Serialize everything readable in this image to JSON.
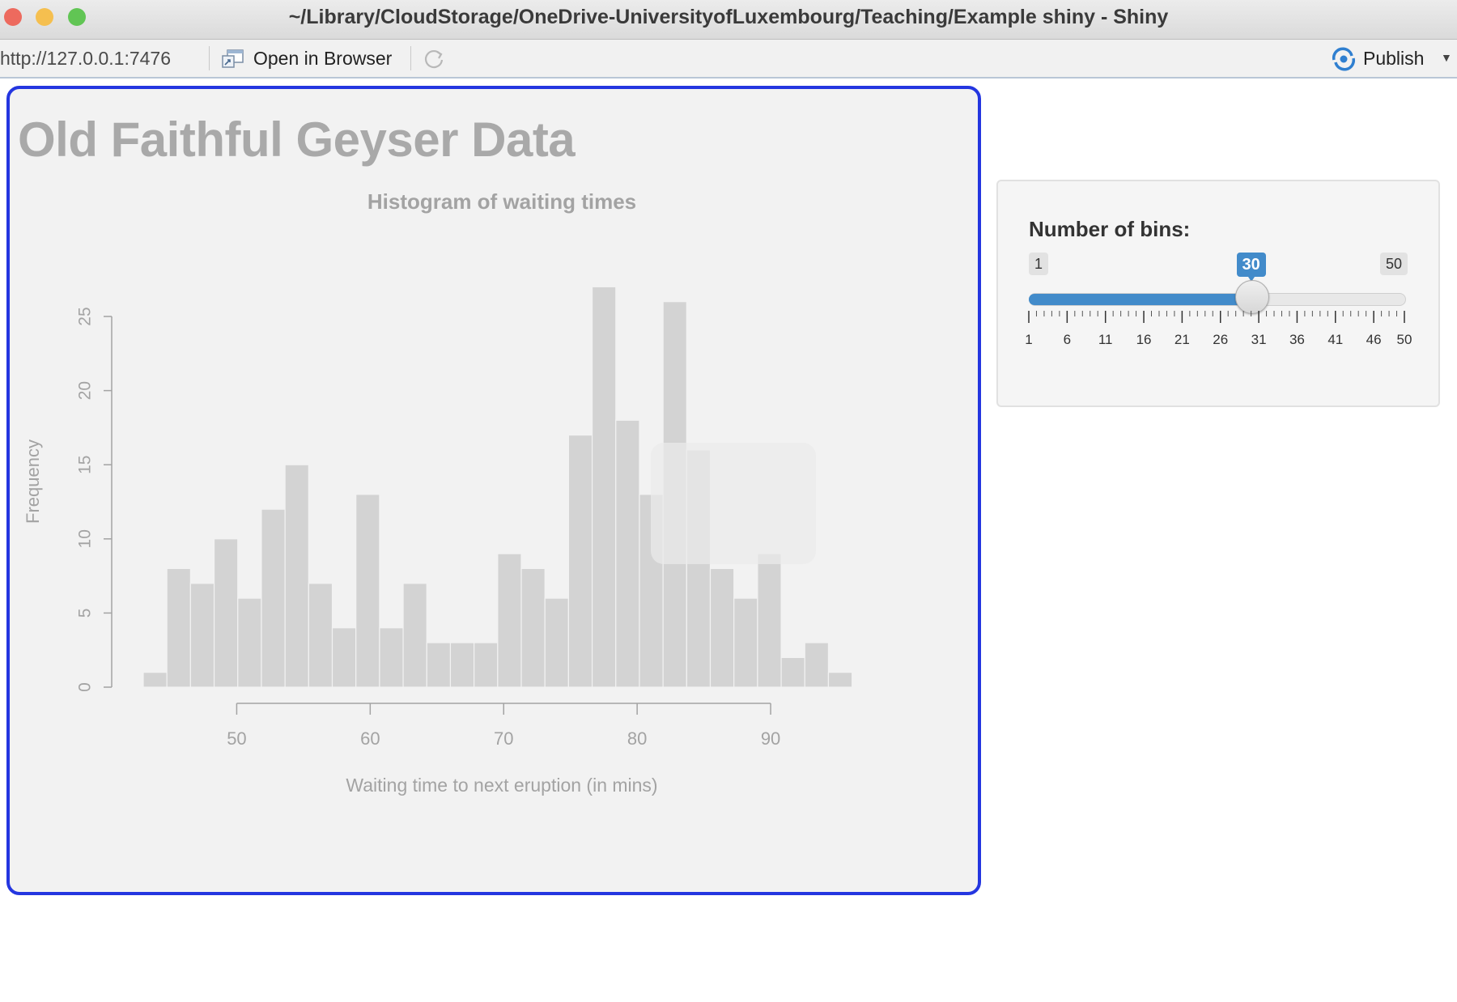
{
  "window": {
    "title": "~/Library/CloudStorage/OneDrive-UniversityofLuxembourg/Teaching/Example shiny - Shiny",
    "traffic_lights": [
      "#ed6a5e",
      "#f5bf4f",
      "#61c554"
    ]
  },
  "toolbar": {
    "url": "http://127.0.0.1:7476",
    "open_in_browser": "Open in Browser",
    "refresh_icon": "refresh-icon",
    "publish": "Publish",
    "publish_icon": "publish-icon",
    "accent": "#2f7fd0"
  },
  "app": {
    "title": "Old Faithful Geyser Data"
  },
  "sidebar": {
    "label": "Number of bins:",
    "slider": {
      "min": 1,
      "max": 50,
      "value": 30,
      "min_label": "1",
      "max_label": "50",
      "value_label": "30",
      "tick_labels": [
        "1",
        "6",
        "11",
        "16",
        "21",
        "26",
        "31",
        "36",
        "41",
        "46",
        "50"
      ],
      "accent": "#428bca"
    }
  },
  "chart_data": {
    "type": "bar",
    "title": "Histogram of waiting times",
    "xlabel": "Waiting time to next eruption (in mins)",
    "ylabel": "Frequency",
    "bin_start": 43,
    "bin_width": 1.77,
    "values": [
      1,
      8,
      7,
      10,
      6,
      12,
      15,
      7,
      4,
      13,
      4,
      7,
      3,
      3,
      3,
      9,
      8,
      6,
      17,
      27,
      18,
      13,
      26,
      16,
      8,
      6,
      9,
      2,
      3,
      1
    ],
    "xlim": [
      43,
      96
    ],
    "ylim": [
      0,
      25
    ],
    "x_ticks": [
      "50",
      "60",
      "70",
      "80",
      "90"
    ],
    "y_ticks": [
      "0",
      "5",
      "10",
      "15",
      "20",
      "25"
    ],
    "bar_color": "#d3d3d3",
    "axis_color": "#a3a3a3"
  }
}
